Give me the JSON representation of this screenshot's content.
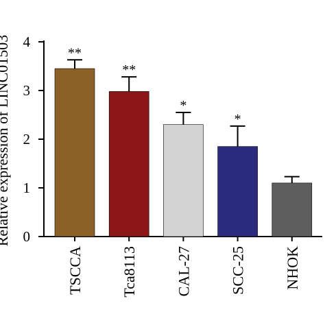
{
  "chart_data": {
    "type": "bar",
    "ylabel": "Relative expression of LINC01503",
    "ylim": [
      0,
      4
    ],
    "yticks": [
      "0",
      "1",
      "2",
      "3",
      "4"
    ],
    "categories": [
      "TSCCA",
      "Tca8113",
      "CAL-27",
      "SCC-25",
      "NHOK"
    ],
    "values": [
      3.45,
      2.98,
      2.3,
      1.85,
      1.1
    ],
    "errors": [
      0.18,
      0.3,
      0.25,
      0.42,
      0.13
    ],
    "significance": [
      "**",
      "**",
      "*",
      "*",
      ""
    ],
    "colors": [
      "#8b6128",
      "#8b1717",
      "#d3d3d3",
      "#2b2b7f",
      "#5e5e5e"
    ],
    "grid": false,
    "legend": "none"
  }
}
